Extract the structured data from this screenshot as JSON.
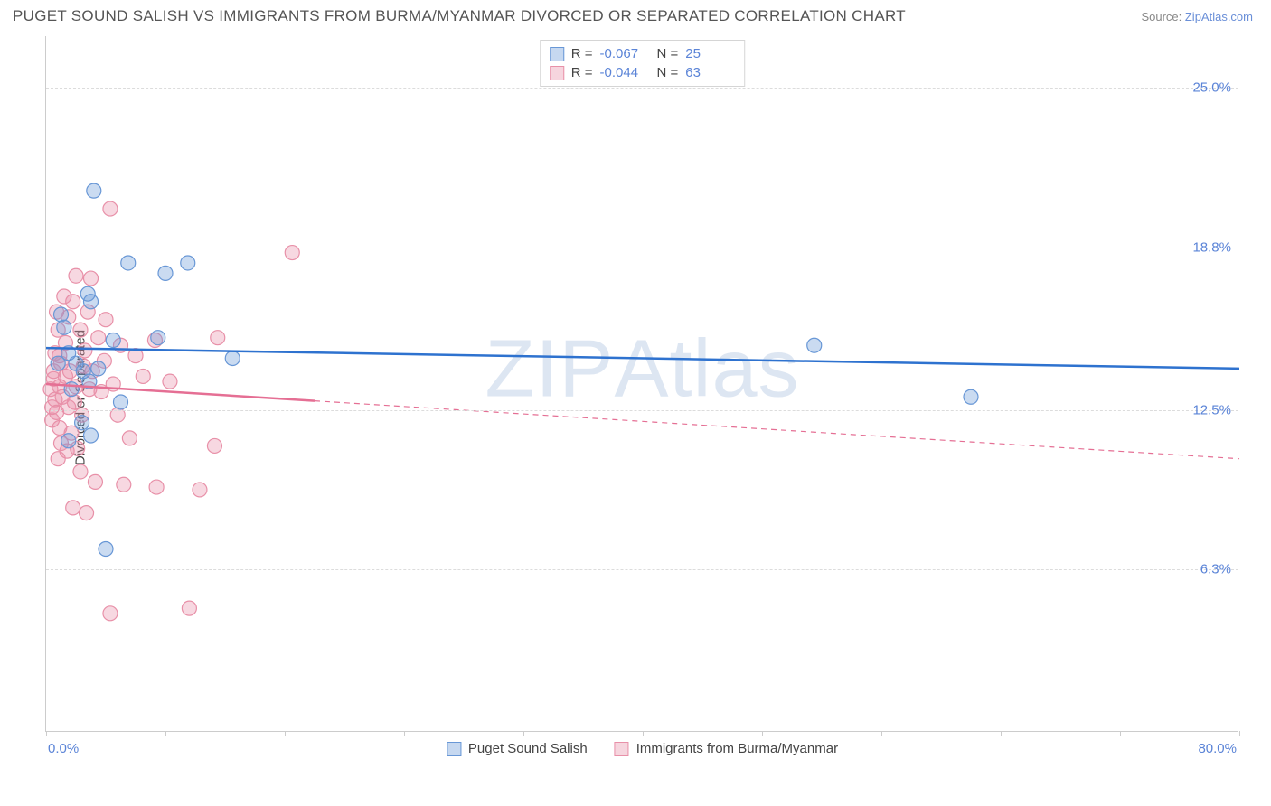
{
  "title": "PUGET SOUND SALISH VS IMMIGRANTS FROM BURMA/MYANMAR DIVORCED OR SEPARATED CORRELATION CHART",
  "source_label": "Source: ",
  "source_name": "ZipAtlas.com",
  "watermark": "ZIPAtlas",
  "chart": {
    "type": "scatter",
    "ylabel": "Divorced or Separated",
    "xlim": [
      0,
      80
    ],
    "ylim": [
      0,
      27
    ],
    "x_axis_labels": {
      "min": "0.0%",
      "max": "80.0%"
    },
    "xticks": [
      0,
      8,
      16,
      24,
      32,
      40,
      48,
      56,
      64,
      72,
      80
    ],
    "yticks": [
      {
        "v": 6.3,
        "label": "6.3%"
      },
      {
        "v": 12.5,
        "label": "12.5%"
      },
      {
        "v": 18.8,
        "label": "18.8%"
      },
      {
        "v": 25.0,
        "label": "25.0%"
      }
    ],
    "background_color": "#ffffff",
    "grid_color": "#dcdcdc",
    "marker_radius": 8,
    "marker_fill_opacity": 0.35,
    "marker_stroke_width": 1.2,
    "line_width": 2.5,
    "series": [
      {
        "name": "Puget Sound Salish",
        "color": "#6897d6",
        "line_color": "#2e72cf",
        "R": "-0.067",
        "N": "25",
        "trend": {
          "x1": 0,
          "y1": 14.9,
          "x2": 80,
          "y2": 14.1,
          "solid_until": 80
        },
        "points": [
          [
            3.2,
            21.0
          ],
          [
            1.0,
            16.2
          ],
          [
            3.0,
            16.7
          ],
          [
            5.5,
            18.2
          ],
          [
            8.0,
            17.8
          ],
          [
            9.5,
            18.2
          ],
          [
            4.5,
            15.2
          ],
          [
            1.5,
            14.7
          ],
          [
            0.8,
            14.3
          ],
          [
            2.0,
            14.3
          ],
          [
            2.5,
            14.0
          ],
          [
            3.5,
            14.1
          ],
          [
            7.5,
            15.3
          ],
          [
            12.5,
            14.5
          ],
          [
            3.0,
            11.5
          ],
          [
            1.5,
            11.3
          ],
          [
            5.0,
            12.8
          ],
          [
            2.4,
            12.0
          ],
          [
            4.0,
            7.1
          ],
          [
            51.5,
            15.0
          ],
          [
            62.0,
            13.0
          ],
          [
            1.7,
            13.3
          ],
          [
            2.9,
            13.6
          ],
          [
            1.2,
            15.7
          ],
          [
            2.8,
            17.0
          ]
        ]
      },
      {
        "name": "Immigrants from Burma/Myanmar",
        "color": "#e890a8",
        "line_color": "#e56f94",
        "R": "-0.044",
        "N": "63",
        "trend": {
          "x1": 0,
          "y1": 13.5,
          "x2": 80,
          "y2": 10.6,
          "solid_until": 18
        },
        "points": [
          [
            4.3,
            20.3
          ],
          [
            16.5,
            18.6
          ],
          [
            2.0,
            17.7
          ],
          [
            3.0,
            17.6
          ],
          [
            1.8,
            16.7
          ],
          [
            1.5,
            16.1
          ],
          [
            0.8,
            15.6
          ],
          [
            2.8,
            16.3
          ],
          [
            4.0,
            16.0
          ],
          [
            11.5,
            15.3
          ],
          [
            7.3,
            15.2
          ],
          [
            2.3,
            15.6
          ],
          [
            3.5,
            15.3
          ],
          [
            5.0,
            15.0
          ],
          [
            1.3,
            15.1
          ],
          [
            0.6,
            14.7
          ],
          [
            1.0,
            14.3
          ],
          [
            1.6,
            14.0
          ],
          [
            2.5,
            14.2
          ],
          [
            3.1,
            14.0
          ],
          [
            0.5,
            13.7
          ],
          [
            0.9,
            13.4
          ],
          [
            1.3,
            13.8
          ],
          [
            2.0,
            13.4
          ],
          [
            2.9,
            13.3
          ],
          [
            3.7,
            13.2
          ],
          [
            4.5,
            13.5
          ],
          [
            6.0,
            14.6
          ],
          [
            0.6,
            12.9
          ],
          [
            0.4,
            12.6
          ],
          [
            0.7,
            12.4
          ],
          [
            1.1,
            13.0
          ],
          [
            1.5,
            12.6
          ],
          [
            1.9,
            12.8
          ],
          [
            2.4,
            12.3
          ],
          [
            0.4,
            12.1
          ],
          [
            0.9,
            11.8
          ],
          [
            1.7,
            11.6
          ],
          [
            5.6,
            11.4
          ],
          [
            11.3,
            11.1
          ],
          [
            6.5,
            13.8
          ],
          [
            2.3,
            10.1
          ],
          [
            3.3,
            9.7
          ],
          [
            5.2,
            9.6
          ],
          [
            7.4,
            9.5
          ],
          [
            10.3,
            9.4
          ],
          [
            2.7,
            8.5
          ],
          [
            1.8,
            8.7
          ],
          [
            4.3,
            4.6
          ],
          [
            9.6,
            4.8
          ],
          [
            0.8,
            10.6
          ],
          [
            1.4,
            10.9
          ],
          [
            2.1,
            11.0
          ],
          [
            0.3,
            13.3
          ],
          [
            0.9,
            14.6
          ],
          [
            2.6,
            14.8
          ],
          [
            3.9,
            14.4
          ],
          [
            1.2,
            16.9
          ],
          [
            0.7,
            16.3
          ],
          [
            4.8,
            12.3
          ],
          [
            8.3,
            13.6
          ],
          [
            1.0,
            11.2
          ],
          [
            0.5,
            14.0
          ]
        ]
      }
    ]
  },
  "legend_top": {
    "R_label": "R =",
    "N_label": "N ="
  }
}
